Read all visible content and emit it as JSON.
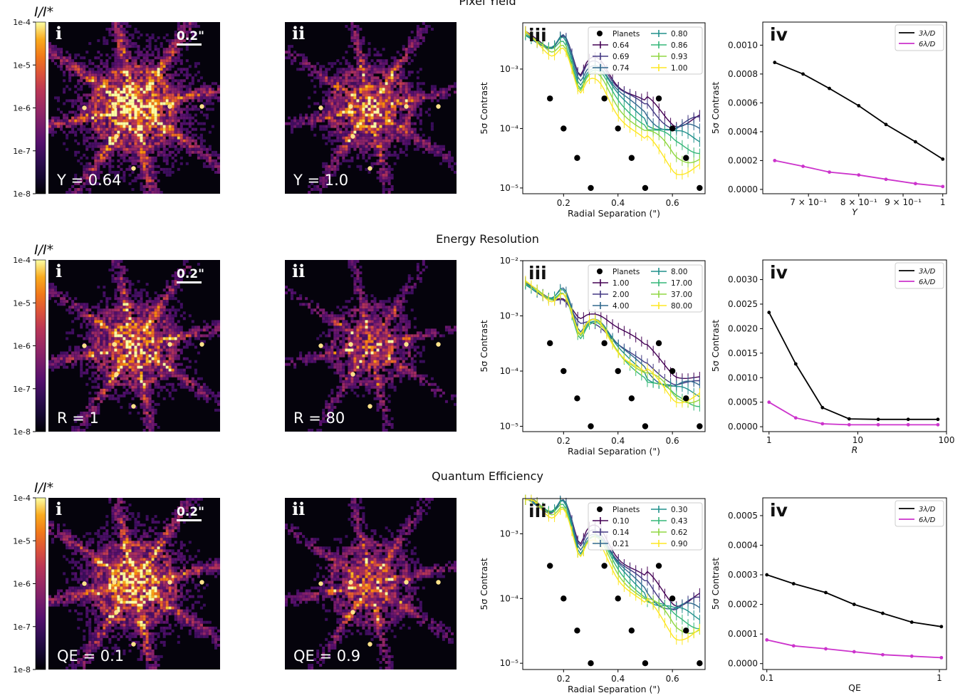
{
  "panel_labels": [
    "i",
    "ii",
    "iii",
    "iv"
  ],
  "scale_bar": "0.2\"",
  "colorbar": {
    "label": "I/I*",
    "ticks": [
      "1e-4",
      "1e-5",
      "1e-6",
      "1e-7",
      "1e-8"
    ]
  },
  "planets_label": "Planets",
  "curve_labels": [
    "3λ/D",
    "6λ/D"
  ],
  "colors": {
    "curve_3": "#000000",
    "curve_6": "#cc33cc",
    "planet": "#000000"
  },
  "rows": [
    {
      "title": "Pixel Yield",
      "img_left_label": "Y = 0.64",
      "img_right_label": "Y = 1.0",
      "chart_data": [
        {
          "type": "line",
          "xlabel": "Radial Separation (\")",
          "ylabel": "5σ Contrast",
          "yscale": "log",
          "xlim": [
            0.05,
            0.72
          ],
          "ylim": [
            8e-06,
            0.006
          ],
          "yticks": [
            "10⁻³",
            "10⁻⁴",
            "10⁻⁵"
          ],
          "xticks": [
            "0.2",
            "0.4",
            "0.6"
          ],
          "legend_cols": 2,
          "series_labels": [
            "0.64",
            "0.69",
            "0.74",
            "0.80",
            "0.86",
            "0.93",
            "1.00"
          ],
          "curve_end": [
            0.00014,
            0.00012,
            9e-05,
            7e-05,
            5e-05,
            3.5e-05,
            2.2e-05
          ]
        },
        {
          "type": "line",
          "ylabel": "5σ Contrast",
          "xlabel": "Y",
          "xscale": "log",
          "xlim": [
            0.62,
            1.01
          ],
          "ylim": [
            -3e-05,
            0.00116
          ],
          "yticks": [
            "0.0000",
            "0.0002",
            "0.0004",
            "0.0006",
            "0.0008",
            "0.0010"
          ],
          "xticks": [
            "7 × 10⁻¹",
            "8 × 10⁻¹",
            "9 × 10⁻¹",
            "1"
          ],
          "x": [
            0.64,
            0.69,
            0.74,
            0.8,
            0.86,
            0.93,
            1.0
          ],
          "series": [
            {
              "name": "3λ/D",
              "fit": [
                0.00088,
                0.0008,
                0.0007,
                0.00058,
                0.00045,
                0.00033,
                0.00021
              ]
            },
            {
              "name": "6λ/D",
              "fit": [
                0.0002,
                0.00016,
                0.00012,
                0.0001,
                7e-05,
                4e-05,
                2e-05
              ]
            }
          ]
        }
      ]
    },
    {
      "title": "Energy Resolution",
      "img_left_label": "R = 1",
      "img_right_label": "R = 80",
      "chart_data": [
        {
          "type": "line",
          "xlabel": "Radial Separation (\")",
          "ylabel": "5σ Contrast",
          "yscale": "log",
          "xlim": [
            0.05,
            0.72
          ],
          "ylim": [
            8e-06,
            0.01
          ],
          "yticks": [
            "10⁻²",
            "10⁻³",
            "10⁻⁴",
            "10⁻⁵"
          ],
          "xticks": [
            "0.2",
            "0.4",
            "0.6"
          ],
          "legend_cols": 2,
          "series_labels": [
            "1.00",
            "2.00",
            "4.00",
            "8.00",
            "17.00",
            "37.00",
            "80.00"
          ],
          "curve_end": [
            7e-05,
            6e-05,
            5e-05,
            4e-05,
            3e-05,
            3.5e-05,
            3.5e-05
          ]
        },
        {
          "type": "line",
          "ylabel": "5σ Contrast",
          "xlabel": "R",
          "xscale": "log",
          "xlim": [
            0.85,
            100
          ],
          "ylim": [
            -0.0001,
            0.0034
          ],
          "yticks": [
            "0.0000",
            "0.0005",
            "0.0010",
            "0.0015",
            "0.0020",
            "0.0025",
            "0.0030"
          ],
          "xticks": [
            "1",
            "10",
            "100"
          ],
          "x": [
            1,
            2,
            4,
            8,
            17,
            37,
            80
          ],
          "series": [
            {
              "name": "3λ/D",
              "fit": [
                0.00233,
                0.00128,
                0.00039,
                0.00016,
                0.00015,
                0.00015,
                0.00015
              ]
            },
            {
              "name": "6λ/D",
              "fit": [
                0.0005,
                0.00018,
                6e-05,
                4e-05,
                4e-05,
                4e-05,
                4e-05
              ]
            }
          ]
        }
      ]
    },
    {
      "title": "Quantum Efficiency",
      "img_left_label": "QE = 0.1",
      "img_right_label": "QE = 0.9",
      "chart_data": [
        {
          "type": "line",
          "xlabel": "Radial Separation (\")",
          "ylabel": "5σ Contrast",
          "yscale": "log",
          "xlim": [
            0.05,
            0.72
          ],
          "ylim": [
            8e-06,
            0.0035
          ],
          "yticks": [
            "10⁻³",
            "10⁻⁴",
            "10⁻⁵"
          ],
          "xticks": [
            "0.2",
            "0.4",
            "0.6"
          ],
          "legend_cols": 2,
          "series_labels": [
            "0.10",
            "0.14",
            "0.21",
            "0.30",
            "0.43",
            "0.62",
            "0.90"
          ],
          "curve_end": [
            0.0001,
            8e-05,
            6.5e-05,
            5.5e-05,
            4.5e-05,
            3.8e-05,
            3e-05
          ]
        },
        {
          "type": "line",
          "ylabel": "5σ Contrast",
          "xlabel": "QE",
          "xscale": "log",
          "xlim": [
            0.095,
            0.96
          ],
          "ylim": [
            -2e-05,
            0.00056
          ],
          "yticks": [
            "0.0000",
            "0.0001",
            "0.0002",
            "0.0003",
            "0.0004",
            "0.0005"
          ],
          "xticks": [
            "0.1",
            "1"
          ],
          "x": [
            0.1,
            0.14,
            0.21,
            0.3,
            0.43,
            0.62,
            0.9
          ],
          "series": [
            {
              "name": "3λ/D",
              "fit": [
                0.0003,
                0.00027,
                0.00024,
                0.0002,
                0.00017,
                0.00014,
                0.000125
              ]
            },
            {
              "name": "6λ/D",
              "fit": [
                8e-05,
                6e-05,
                5e-05,
                4e-05,
                3e-05,
                2.5e-05,
                2e-05
              ]
            }
          ]
        }
      ]
    }
  ]
}
